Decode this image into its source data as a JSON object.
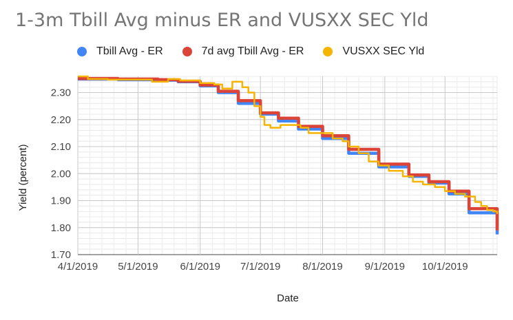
{
  "chart_data": {
    "type": "line",
    "title": "1-3m Tbill Avg minus ER and VUSXX SEC Yld",
    "xlabel": "Date",
    "ylabel": "Yield (percent)",
    "x_ticks": [
      "4/1/2019",
      "5/1/2019",
      "6/1/2019",
      "7/1/2019",
      "8/1/2019",
      "9/1/2019",
      "10/1/2019"
    ],
    "x_tick_days": [
      0,
      30,
      61,
      91,
      122,
      153,
      183
    ],
    "xlim_days": [
      0,
      209
    ],
    "y_ticks": [
      "1.70",
      "1.80",
      "1.90",
      "2.00",
      "2.10",
      "2.20",
      "2.30"
    ],
    "y_tick_values": [
      1.7,
      1.8,
      1.9,
      2.0,
      2.1,
      2.2,
      2.3
    ],
    "ylim": [
      1.7,
      2.36
    ],
    "grid": true,
    "legend_position": "top",
    "series": [
      {
        "name": "Tbill Avg - ER",
        "color": "#4285F4",
        "style": "step",
        "points": [
          [
            0,
            2.35
          ],
          [
            20,
            2.348
          ],
          [
            40,
            2.346
          ],
          [
            50,
            2.34
          ],
          [
            61,
            2.325
          ],
          [
            70,
            2.3
          ],
          [
            80,
            2.26
          ],
          [
            91,
            2.22
          ],
          [
            100,
            2.195
          ],
          [
            110,
            2.165
          ],
          [
            122,
            2.13
          ],
          [
            135,
            2.075
          ],
          [
            150,
            2.025
          ],
          [
            165,
            1.99
          ],
          [
            175,
            1.965
          ],
          [
            185,
            1.925
          ],
          [
            195,
            1.855
          ],
          [
            209,
            1.775
          ]
        ]
      },
      {
        "name": "7d avg Tbill Avg - ER",
        "color": "#DB4437",
        "style": "step",
        "points": [
          [
            0,
            2.352
          ],
          [
            20,
            2.35
          ],
          [
            40,
            2.348
          ],
          [
            50,
            2.342
          ],
          [
            61,
            2.328
          ],
          [
            70,
            2.305
          ],
          [
            80,
            2.27
          ],
          [
            91,
            2.225
          ],
          [
            100,
            2.205
          ],
          [
            110,
            2.175
          ],
          [
            122,
            2.14
          ],
          [
            135,
            2.09
          ],
          [
            150,
            2.035
          ],
          [
            165,
            1.995
          ],
          [
            175,
            1.97
          ],
          [
            185,
            1.935
          ],
          [
            195,
            1.87
          ],
          [
            209,
            1.79
          ]
        ]
      },
      {
        "name": "VUSXX SEC Yld",
        "color": "#F4B400",
        "style": "step",
        "points": [
          [
            0,
            2.36
          ],
          [
            5,
            2.35
          ],
          [
            15,
            2.348
          ],
          [
            35,
            2.348
          ],
          [
            37,
            2.34
          ],
          [
            45,
            2.35
          ],
          [
            51,
            2.345
          ],
          [
            61,
            2.335
          ],
          [
            68,
            2.33
          ],
          [
            72,
            2.315
          ],
          [
            77,
            2.34
          ],
          [
            82,
            2.32
          ],
          [
            85,
            2.3
          ],
          [
            88,
            2.25
          ],
          [
            91,
            2.21
          ],
          [
            93,
            2.18
          ],
          [
            96,
            2.17
          ],
          [
            101,
            2.18
          ],
          [
            106,
            2.18
          ],
          [
            111,
            2.17
          ],
          [
            115,
            2.15
          ],
          [
            122,
            2.15
          ],
          [
            127,
            2.13
          ],
          [
            132,
            2.12
          ],
          [
            135,
            2.1
          ],
          [
            140,
            2.075
          ],
          [
            145,
            2.045
          ],
          [
            150,
            2.03
          ],
          [
            155,
            2.01
          ],
          [
            162,
            1.99
          ],
          [
            167,
            1.97
          ],
          [
            172,
            1.96
          ],
          [
            178,
            1.95
          ],
          [
            183,
            1.935
          ],
          [
            188,
            1.925
          ],
          [
            193,
            1.915
          ],
          [
            198,
            1.895
          ],
          [
            201,
            1.88
          ],
          [
            204,
            1.865
          ],
          [
            207,
            1.86
          ],
          [
            209,
            1.85
          ]
        ]
      }
    ]
  }
}
